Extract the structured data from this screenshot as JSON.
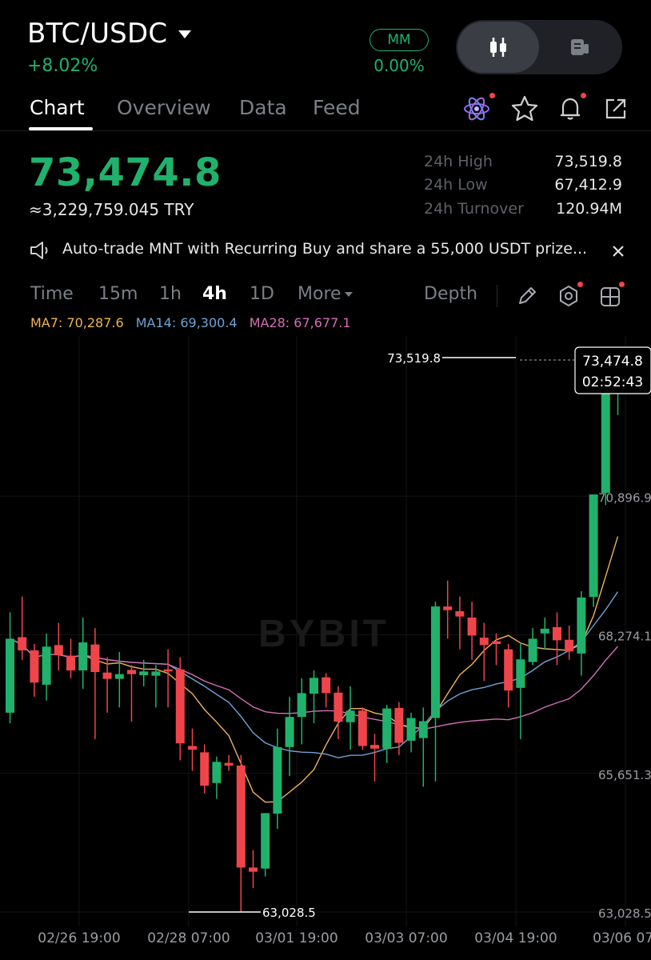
{
  "header": {
    "pair": "BTC/USDC",
    "change_pct": "+8.02%",
    "mm_label": "MM",
    "mm_value": "0.00%",
    "view_toggle": {
      "active_icon": "candlestick-icon",
      "inactive_icon": "orderbook-icon"
    }
  },
  "tabs": [
    {
      "label": "Chart",
      "active": true
    },
    {
      "label": "Overview",
      "active": false
    },
    {
      "label": "Data",
      "active": false
    },
    {
      "label": "Feed",
      "active": false
    }
  ],
  "top_icons": [
    "ai-atom-icon",
    "star-icon",
    "bell-icon",
    "share-icon"
  ],
  "ticker": {
    "last_price": "73,474.8",
    "converted": "≈3,229,759.045 TRY",
    "stats": [
      {
        "label": "24h High",
        "value": "73,519.8"
      },
      {
        "label": "24h Low",
        "value": "67,412.9"
      },
      {
        "label": "24h Turnover",
        "value": "120.94M"
      }
    ]
  },
  "banner": {
    "text": "Auto-trade MNT with Recurring Buy and share a 55,000 USDT prize...",
    "icon": "speaker-icon",
    "close_icon": "close-icon"
  },
  "timeframes": {
    "items": [
      {
        "label": "Time",
        "active": false
      },
      {
        "label": "15m",
        "active": false
      },
      {
        "label": "1h",
        "active": false
      },
      {
        "label": "4h",
        "active": true
      },
      {
        "label": "1D",
        "active": false
      }
    ],
    "more_label": "More",
    "depth_label": "Depth",
    "tool_icons": [
      "pencil-icon",
      "indicator-settings-icon",
      "layout-grid-icon"
    ]
  },
  "moving_averages": [
    {
      "label": "MA7: 70,287.6",
      "color": "#f0b35a"
    },
    {
      "label": "MA14: 69,300.4",
      "color": "#6fa3d6"
    },
    {
      "label": "MA28: 67,677.1",
      "color": "#d46fb8"
    }
  ],
  "colors": {
    "up": "#20b26c",
    "down": "#ef454a",
    "accent": "#20b26c"
  },
  "chart_data": {
    "type": "candlestick",
    "interval": "4h",
    "watermark": "BYBIT",
    "y_ticks": [
      "70,896.9",
      "68,274.1",
      "65,651.3",
      "63,028.5"
    ],
    "x_ticks": [
      "02/26 19:00",
      "02/28 07:00",
      "03/01 19:00",
      "03/03 07:00",
      "03/04 19:00",
      "03/06 07:"
    ],
    "ylim": [
      63028.5,
      73519.8
    ],
    "high_marker": "73,519.8",
    "low_marker": "63,028.5",
    "last_price_label": "73,474.8",
    "countdown": "02:52:43",
    "candles": [
      {
        "o": 66800,
        "h": 68700,
        "l": 66600,
        "c": 68200
      },
      {
        "o": 68230,
        "h": 69000,
        "l": 67800,
        "c": 67980
      },
      {
        "o": 67980,
        "h": 68100,
        "l": 67100,
        "c": 67370
      },
      {
        "o": 67330,
        "h": 68300,
        "l": 67030,
        "c": 68050
      },
      {
        "o": 68080,
        "h": 68500,
        "l": 67600,
        "c": 67890
      },
      {
        "o": 67880,
        "h": 68200,
        "l": 67450,
        "c": 67600
      },
      {
        "o": 67600,
        "h": 68600,
        "l": 67250,
        "c": 68130
      },
      {
        "o": 68090,
        "h": 68400,
        "l": 66300,
        "c": 67570
      },
      {
        "o": 67560,
        "h": 67850,
        "l": 66800,
        "c": 67440
      },
      {
        "o": 67440,
        "h": 67950,
        "l": 66900,
        "c": 67530
      },
      {
        "o": 67610,
        "h": 67700,
        "l": 66630,
        "c": 67530
      },
      {
        "o": 67510,
        "h": 67800,
        "l": 67300,
        "c": 67580
      },
      {
        "o": 67500,
        "h": 67700,
        "l": 66900,
        "c": 67580
      },
      {
        "o": 67620,
        "h": 68000,
        "l": 66900,
        "c": 67580
      },
      {
        "o": 67620,
        "h": 67850,
        "l": 65900,
        "c": 66220
      },
      {
        "o": 66170,
        "h": 66500,
        "l": 65700,
        "c": 66100
      },
      {
        "o": 66050,
        "h": 66200,
        "l": 65270,
        "c": 65420
      },
      {
        "o": 65470,
        "h": 65970,
        "l": 65170,
        "c": 65870
      },
      {
        "o": 65850,
        "h": 66000,
        "l": 65700,
        "c": 65800
      },
      {
        "o": 65800,
        "h": 66000,
        "l": 63020,
        "c": 63870
      },
      {
        "o": 63870,
        "h": 64200,
        "l": 63480,
        "c": 63790
      },
      {
        "o": 63850,
        "h": 64900,
        "l": 63700,
        "c": 64900
      },
      {
        "o": 64890,
        "h": 66500,
        "l": 64600,
        "c": 66150
      },
      {
        "o": 66150,
        "h": 67100,
        "l": 65600,
        "c": 66720
      },
      {
        "o": 66720,
        "h": 67450,
        "l": 66200,
        "c": 67170
      },
      {
        "o": 67160,
        "h": 67600,
        "l": 66600,
        "c": 67460
      },
      {
        "o": 67470,
        "h": 67550,
        "l": 66900,
        "c": 67170
      },
      {
        "o": 67180,
        "h": 67300,
        "l": 66300,
        "c": 66630
      },
      {
        "o": 66620,
        "h": 67300,
        "l": 66100,
        "c": 66840
      },
      {
        "o": 66840,
        "h": 66900,
        "l": 66100,
        "c": 66170
      },
      {
        "o": 66190,
        "h": 66400,
        "l": 65500,
        "c": 66120
      },
      {
        "o": 66120,
        "h": 66950,
        "l": 65850,
        "c": 66880
      },
      {
        "o": 66890,
        "h": 67000,
        "l": 66000,
        "c": 66230
      },
      {
        "o": 66270,
        "h": 66800,
        "l": 66050,
        "c": 66700
      },
      {
        "o": 66320,
        "h": 66900,
        "l": 65400,
        "c": 66640
      },
      {
        "o": 66700,
        "h": 68900,
        "l": 65500,
        "c": 68810
      },
      {
        "o": 68810,
        "h": 69300,
        "l": 68200,
        "c": 68740
      },
      {
        "o": 68720,
        "h": 69000,
        "l": 68000,
        "c": 68620
      },
      {
        "o": 68600,
        "h": 68900,
        "l": 67800,
        "c": 68260
      },
      {
        "o": 68220,
        "h": 68500,
        "l": 67400,
        "c": 68080
      },
      {
        "o": 68150,
        "h": 68300,
        "l": 67700,
        "c": 68100
      },
      {
        "o": 68000,
        "h": 68100,
        "l": 66900,
        "c": 67220
      },
      {
        "o": 67270,
        "h": 68100,
        "l": 66300,
        "c": 67810
      },
      {
        "o": 67760,
        "h": 68400,
        "l": 67700,
        "c": 68200
      },
      {
        "o": 68300,
        "h": 68600,
        "l": 68000,
        "c": 68390
      },
      {
        "o": 68420,
        "h": 68700,
        "l": 67700,
        "c": 68170
      },
      {
        "o": 68180,
        "h": 68450,
        "l": 67800,
        "c": 67960
      },
      {
        "o": 67920,
        "h": 69100,
        "l": 67500,
        "c": 68980
      },
      {
        "o": 68990,
        "h": 70900,
        "l": 68800,
        "c": 70930
      },
      {
        "o": 70960,
        "h": 73000,
        "l": 70730,
        "c": 73040
      },
      {
        "o": 73400,
        "h": 73519.8,
        "l": 72430,
        "c": 73474.8
      }
    ]
  }
}
